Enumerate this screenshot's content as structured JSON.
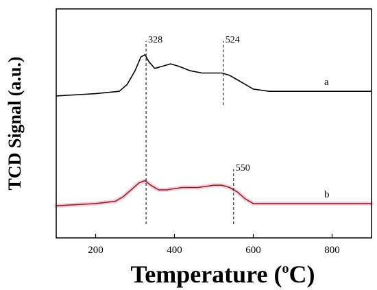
{
  "chart_data": {
    "type": "line",
    "title": "",
    "xlabel_parts": [
      "Temperature (",
      "o",
      "C)"
    ],
    "ylabel": "TCD Signal (a.u.)",
    "xlim": [
      100,
      900
    ],
    "xticks": [
      200,
      400,
      600,
      800
    ],
    "xtick_labels": [
      "200",
      "400",
      "600",
      "800"
    ],
    "yticks": false,
    "grid": false,
    "series": [
      {
        "name": "a",
        "color": "#000000",
        "x": [
          100,
          200,
          260,
          280,
          300,
          315,
          325,
          335,
          350,
          370,
          390,
          410,
          440,
          470,
          500,
          520,
          540,
          560,
          580,
          600,
          640,
          700,
          800,
          900
        ],
        "y": [
          0.62,
          0.63,
          0.64,
          0.67,
          0.73,
          0.79,
          0.8,
          0.77,
          0.74,
          0.75,
          0.76,
          0.75,
          0.73,
          0.72,
          0.72,
          0.72,
          0.71,
          0.69,
          0.67,
          0.65,
          0.64,
          0.64,
          0.64,
          0.64
        ]
      },
      {
        "name": "b",
        "color": "#8b2a1a",
        "glow": "#f2b6d6",
        "x": [
          100,
          200,
          250,
          270,
          290,
          310,
          325,
          340,
          360,
          380,
          420,
          460,
          500,
          520,
          540,
          560,
          580,
          600,
          640,
          700,
          800,
          900
        ],
        "y": [
          0.14,
          0.15,
          0.16,
          0.18,
          0.21,
          0.24,
          0.25,
          0.23,
          0.21,
          0.21,
          0.22,
          0.22,
          0.23,
          0.23,
          0.22,
          0.2,
          0.17,
          0.15,
          0.15,
          0.15,
          0.15,
          0.15
        ]
      }
    ],
    "annotations": [
      {
        "x": 328,
        "label": "328",
        "y_bottom": 0.06,
        "y_top": 0.86
      },
      {
        "x": 524,
        "label": "524",
        "y_bottom": 0.58,
        "y_top": 0.86
      },
      {
        "x": 550,
        "label": "550",
        "y_bottom": 0.06,
        "y_top": 0.3
      }
    ]
  }
}
